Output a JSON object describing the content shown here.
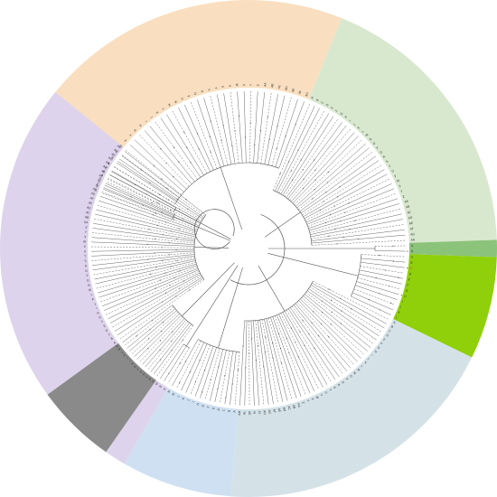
{
  "figure": {
    "type": "circular-phylogenetic-tree",
    "highlight_color": "#e8231f",
    "branch_color": "#555555",
    "label_color": "#333333"
  },
  "clades": [
    {
      "id": "orange",
      "color": "#f9dfc0",
      "labels": [
        "A",
        "B",
        "C",
        "D",
        "E",
        "F",
        "G",
        "H",
        "I",
        "J",
        "K",
        "L",
        "M",
        "N",
        "O",
        "P",
        "Q",
        "R",
        "S",
        "T",
        "U",
        "V",
        "W",
        "X",
        "Y",
        "Z",
        "AA",
        "AB",
        "AC",
        "AD",
        "AE",
        "AF",
        "AG"
      ]
    },
    {
      "id": "pink",
      "color": "#f6c9cc",
      "labels": [
        "A",
        "B",
        "C"
      ]
    },
    {
      "id": "red",
      "color": "#e07878",
      "labels": [
        "A",
        "B",
        "C",
        "D"
      ]
    },
    {
      "id": "green",
      "color": "#d8e8cf",
      "labels": [
        "A",
        "B",
        "C",
        "D",
        "E",
        "F",
        "G",
        "H",
        "I",
        "J",
        "K",
        "L",
        "M",
        "N",
        "O",
        "P",
        "Q",
        "R",
        "S",
        "T",
        "U",
        "V",
        "W",
        "X",
        "Y",
        "Z",
        "AA",
        "AB",
        "AC",
        "AD",
        "AE",
        "AF",
        "AG",
        "AH"
      ]
    },
    {
      "id": "mid-green",
      "color": "#8cc37a",
      "labels": [
        "A",
        "B"
      ]
    },
    {
      "id": "lime",
      "color": "#8fd00a",
      "labels": [
        "A",
        "B",
        "C",
        "D",
        "E",
        "F",
        "G",
        "H",
        "I",
        "J",
        "K",
        "L"
      ],
      "highlight_index": 2
    },
    {
      "id": "blue-grey",
      "color": "#d4e2e8",
      "labels": [
        "A",
        "B",
        "C",
        "D",
        "E",
        "F",
        "G",
        "H",
        "I",
        "J",
        "K",
        "L",
        "M",
        "N",
        "O",
        "P",
        "Q",
        "R",
        "S",
        "T",
        "U",
        "V",
        "W",
        "X",
        "Y",
        "Z",
        "AA",
        "AB",
        "AC",
        "AD",
        "AE",
        "AF",
        "AG",
        "AH",
        "AI",
        "AJ",
        "AK",
        "AL",
        "AM"
      ]
    },
    {
      "id": "light-blue",
      "color": "#cfe0f2",
      "labels": [
        "A",
        "B",
        "C",
        "D",
        "E",
        "F",
        "G",
        "H",
        "I",
        "J",
        "K",
        "L",
        "M",
        "N"
      ]
    },
    {
      "id": "lavender-2",
      "color": "#ddd3ec",
      "labels": [
        "A",
        "B",
        "C"
      ]
    },
    {
      "id": "grey",
      "color": "#8a8a8a",
      "labels": [
        "A",
        "B",
        "C",
        "D",
        "E",
        "F",
        "G",
        "H",
        "I",
        "J",
        "K",
        "L",
        "M",
        "N"
      ]
    },
    {
      "id": "lavender",
      "color": "#ddd3ec",
      "labels": [
        "A",
        "B",
        "C",
        "D",
        "E",
        "F",
        "G",
        "H",
        "I",
        "J",
        "K",
        "L",
        "M",
        "N",
        "O",
        "P",
        "Q",
        "R",
        "S",
        "T",
        "U",
        "V",
        "W",
        "X",
        "Y",
        "Z",
        "AA",
        "AB",
        "AC",
        "AD",
        "AE",
        "AF",
        "AG",
        "AH",
        "AI",
        "AJ",
        "AK",
        "AL",
        "AM",
        "AN",
        "AO",
        "AP",
        "AQ",
        "AR"
      ]
    }
  ]
}
